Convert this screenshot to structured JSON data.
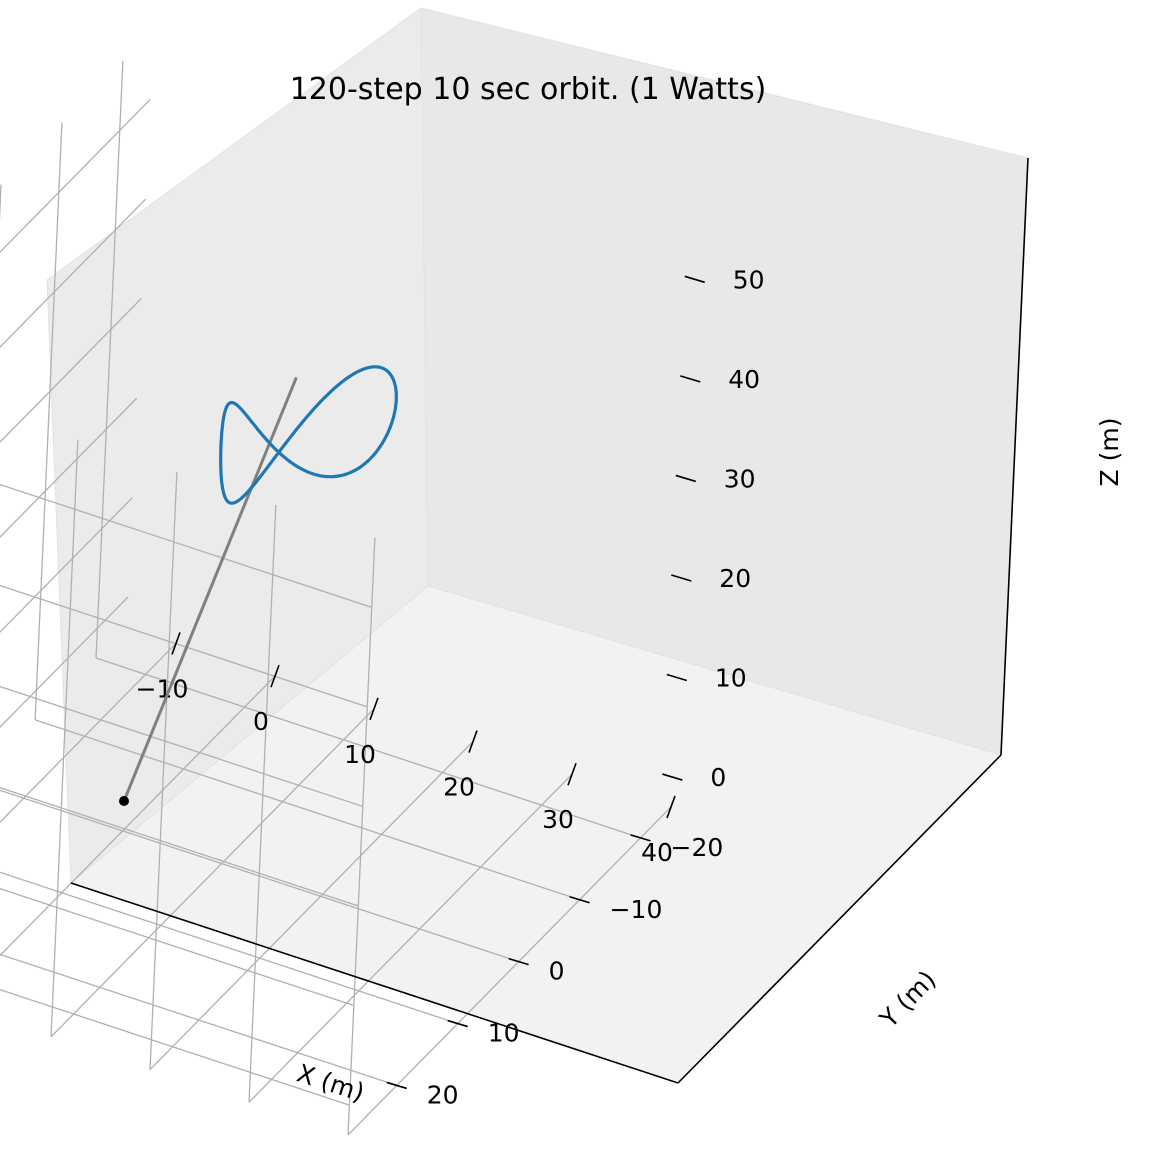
{
  "chart_data": {
    "type": "line3d",
    "title": "120-step 10 sec orbit. (1 Watts)",
    "xlabel": "X (m)",
    "ylabel": "Y (m)",
    "zlabel": "Z (m)",
    "xlim": [
      -15,
      40
    ],
    "ylim": [
      -25,
      28
    ],
    "zlim": [
      -3,
      57
    ],
    "xticks": [
      -10,
      0,
      10,
      20,
      30,
      40
    ],
    "yticks": [
      -20,
      -10,
      0,
      10,
      20
    ],
    "zticks": [
      0,
      10,
      20,
      30,
      40,
      50
    ],
    "grid": true,
    "series": [
      {
        "role": "orbit",
        "color": "#1f77b4",
        "shape": "figure-eight",
        "center": [
          17,
          3,
          44
        ],
        "lobe_half_width": 7,
        "lobe_half_height": 5
      },
      {
        "role": "tether",
        "color": "#808080",
        "from": [
          0,
          0,
          0
        ],
        "to": [
          17,
          3,
          50
        ]
      }
    ],
    "points": [
      {
        "role": "anchor",
        "color": "#000000",
        "xyz": [
          0,
          0,
          0
        ]
      }
    ]
  }
}
